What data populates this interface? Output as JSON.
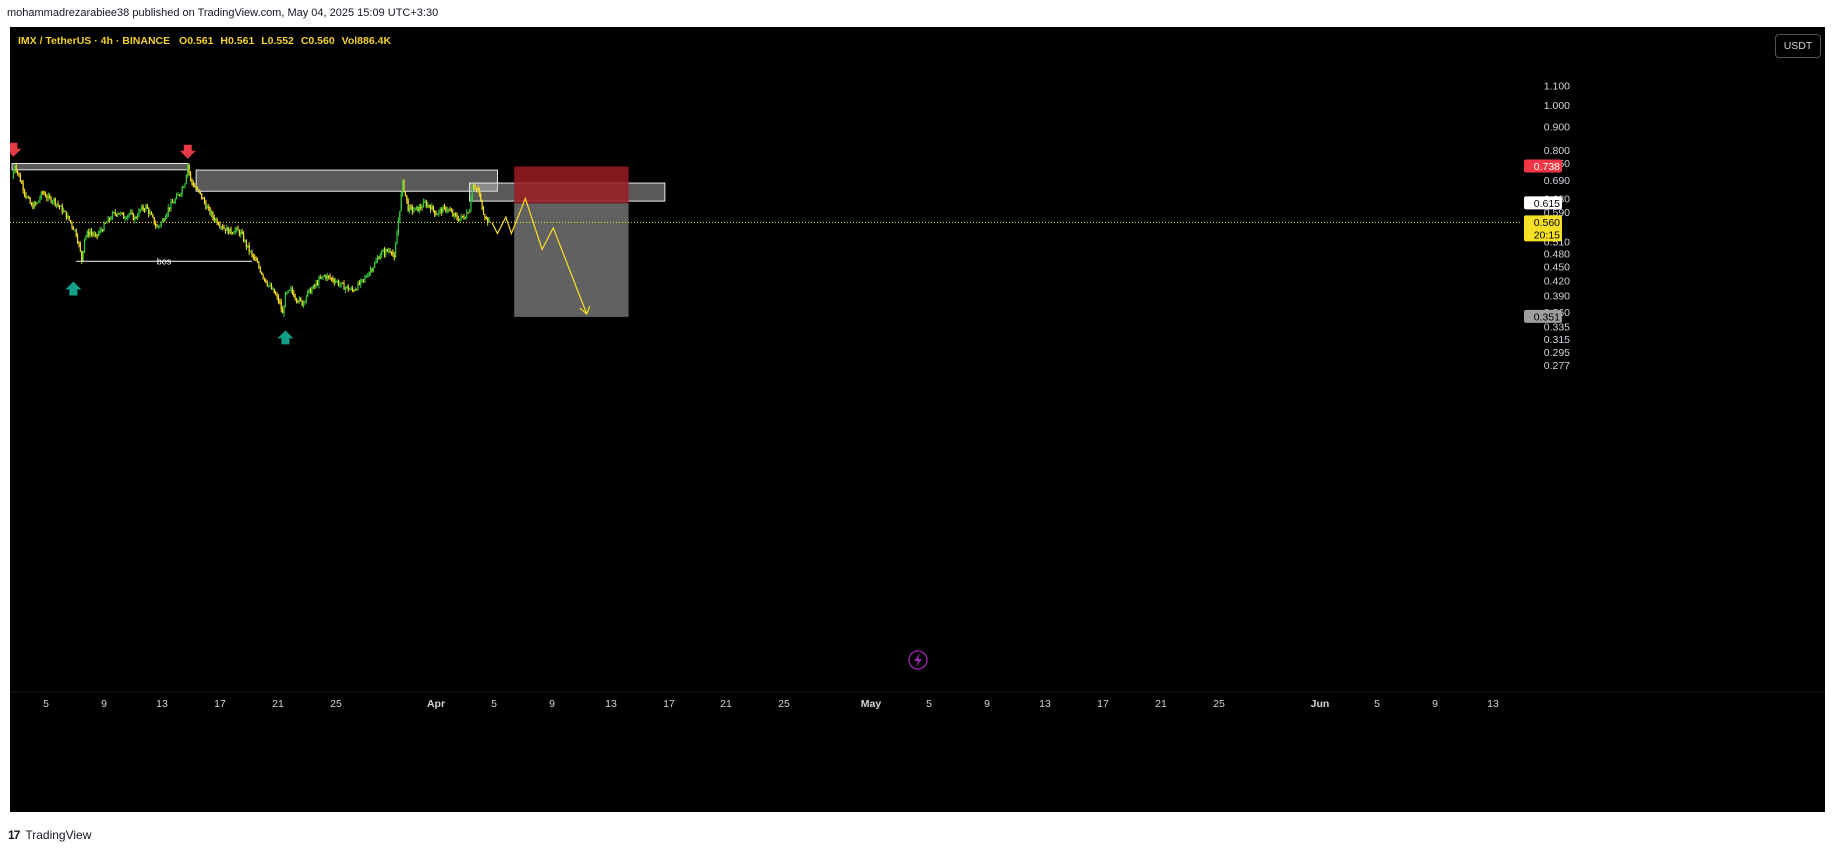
{
  "header": {
    "published": "mohammadrezarabiee38 published on TradingView.com, May 04, 2025 15:09 UTC+3:30"
  },
  "legend": {
    "symbol": "IMX / TetherUS",
    "interval": "4h",
    "exchange": "BINANCE",
    "open": "O0.561",
    "high": "H0.561",
    "low": "L0.552",
    "close": "C0.560",
    "volume": "Vol886.4K"
  },
  "currency_button": "USDT",
  "footer": {
    "brand": "TradingView",
    "logo_mark": "17"
  },
  "colors": {
    "background": "#000000",
    "candle_up": "#36c93c",
    "candle_down": "#f5e025",
    "arrow_down": "#e53946",
    "arrow_up": "#12a08a",
    "zone": "#c8c8c8",
    "stop_zone": "#9b1c24",
    "target_zone": "#6b6b6b",
    "projection": "#f5e025",
    "current_price_line": "#f5e025"
  },
  "chart_data": {
    "type": "candlestick",
    "symbol": "IMX / TetherUS",
    "interval": "4h",
    "scale": "log",
    "y_ticks": [
      "1.100",
      "1.000",
      "0.900",
      "0.800",
      "0.750",
      "0.690",
      "0.630",
      "0.590",
      "0.510",
      "0.480",
      "0.450",
      "0.420",
      "0.390",
      "0.360",
      "0.335",
      "0.315",
      "0.295",
      "0.277"
    ],
    "x_ticks": [
      "5",
      "9",
      "13",
      "17",
      "21",
      "25",
      "Apr",
      "5",
      "9",
      "13",
      "17",
      "21",
      "25",
      "May",
      "5",
      "9",
      "13",
      "17",
      "21",
      "25",
      "Jun",
      "5",
      "9",
      "13"
    ],
    "price_labels": [
      {
        "value": 0.738,
        "text": "0.738",
        "bg": "#f23645",
        "fg": "#ffffff"
      },
      {
        "value": 0.615,
        "text": "0.615",
        "bg": "#ffffff",
        "fg": "#000000"
      },
      {
        "value": 0.56,
        "text": "0.560",
        "sub": "20:15",
        "bg": "#f5e025",
        "fg": "#000000"
      },
      {
        "value": 0.351,
        "text": "0.351",
        "bg": "#9e9e9e",
        "fg": "#000000"
      }
    ],
    "current_price": 0.56,
    "price_path": [
      [
        0,
        0.695
      ],
      [
        1,
        0.745
      ],
      [
        3,
        0.69
      ],
      [
        5,
        0.64
      ],
      [
        7,
        0.605
      ],
      [
        9,
        0.615
      ],
      [
        11,
        0.65
      ],
      [
        13,
        0.63
      ],
      [
        15,
        0.625
      ],
      [
        17,
        0.605
      ],
      [
        19,
        0.585
      ],
      [
        21,
        0.56
      ],
      [
        23,
        0.53
      ],
      [
        24,
        0.5
      ],
      [
        25,
        0.465
      ],
      [
        26,
        0.52
      ],
      [
        28,
        0.535
      ],
      [
        30,
        0.52
      ],
      [
        32,
        0.54
      ],
      [
        34,
        0.56
      ],
      [
        36,
        0.58
      ],
      [
        38,
        0.59
      ],
      [
        40,
        0.575
      ],
      [
        42,
        0.585
      ],
      [
        44,
        0.57
      ],
      [
        46,
        0.595
      ],
      [
        48,
        0.605
      ],
      [
        50,
        0.575
      ],
      [
        52,
        0.545
      ],
      [
        54,
        0.565
      ],
      [
        56,
        0.6
      ],
      [
        58,
        0.62
      ],
      [
        60,
        0.645
      ],
      [
        62,
        0.685
      ],
      [
        63,
        0.745
      ],
      [
        64,
        0.69
      ],
      [
        66,
        0.66
      ],
      [
        68,
        0.635
      ],
      [
        70,
        0.6
      ],
      [
        72,
        0.575
      ],
      [
        74,
        0.56
      ],
      [
        76,
        0.545
      ],
      [
        78,
        0.535
      ],
      [
        80,
        0.54
      ],
      [
        82,
        0.53
      ],
      [
        84,
        0.5
      ],
      [
        86,
        0.475
      ],
      [
        88,
        0.455
      ],
      [
        90,
        0.43
      ],
      [
        92,
        0.41
      ],
      [
        94,
        0.395
      ],
      [
        96,
        0.375
      ],
      [
        97,
        0.355
      ],
      [
        98,
        0.39
      ],
      [
        100,
        0.4
      ],
      [
        102,
        0.385
      ],
      [
        104,
        0.375
      ],
      [
        106,
        0.395
      ],
      [
        108,
        0.405
      ],
      [
        110,
        0.42
      ],
      [
        112,
        0.43
      ],
      [
        114,
        0.425
      ],
      [
        116,
        0.42
      ],
      [
        118,
        0.41
      ],
      [
        120,
        0.405
      ],
      [
        122,
        0.4
      ],
      [
        124,
        0.41
      ],
      [
        126,
        0.42
      ],
      [
        128,
        0.44
      ],
      [
        130,
        0.455
      ],
      [
        132,
        0.48
      ],
      [
        134,
        0.485
      ],
      [
        136,
        0.49
      ],
      [
        137,
        0.465
      ],
      [
        138,
        0.53
      ],
      [
        139,
        0.6
      ],
      [
        140,
        0.68
      ],
      [
        141,
        0.64
      ],
      [
        142,
        0.6
      ],
      [
        144,
        0.595
      ],
      [
        146,
        0.6
      ],
      [
        148,
        0.615
      ],
      [
        150,
        0.605
      ],
      [
        152,
        0.585
      ],
      [
        154,
        0.595
      ],
      [
        156,
        0.6
      ],
      [
        158,
        0.58
      ],
      [
        160,
        0.57
      ],
      [
        162,
        0.575
      ],
      [
        164,
        0.6
      ],
      [
        165,
        0.67
      ],
      [
        166,
        0.655
      ],
      [
        167,
        0.66
      ],
      [
        168,
        0.62
      ],
      [
        169,
        0.59
      ],
      [
        170,
        0.57
      ],
      [
        171,
        0.56
      ]
    ],
    "zones": [
      {
        "kind": "supply",
        "x_start": 0,
        "x_end": 63,
        "y_top": 0.749,
        "y_bottom": 0.726
      },
      {
        "kind": "supply",
        "x_start": 66,
        "x_end": 174,
        "y_top": 0.725,
        "y_bottom": 0.653
      },
      {
        "kind": "supply",
        "x_start": 164,
        "x_end": 234,
        "y_top": 0.68,
        "y_bottom": 0.622
      }
    ],
    "position": {
      "kind": "short",
      "entry": 0.615,
      "stop": 0.738,
      "target": 0.351,
      "x_start": 180,
      "x_end": 221
    },
    "bos": {
      "label": "bos",
      "value": 0.462,
      "x_start": 23,
      "x_end": 86
    },
    "arrows": [
      {
        "dir": "down",
        "x": 0.5,
        "y": 0.79
      },
      {
        "dir": "down",
        "x": 63,
        "y": 0.782
      },
      {
        "dir": "up",
        "x": 22,
        "y": 0.41
      },
      {
        "dir": "up",
        "x": 98,
        "y": 0.322
      }
    ],
    "projection": [
      [
        172,
        0.56
      ],
      [
        174,
        0.53
      ],
      [
        177,
        0.575
      ],
      [
        179,
        0.53
      ],
      [
        184,
        0.63
      ],
      [
        190,
        0.49
      ],
      [
        194,
        0.545
      ],
      [
        206,
        0.356
      ]
    ]
  }
}
